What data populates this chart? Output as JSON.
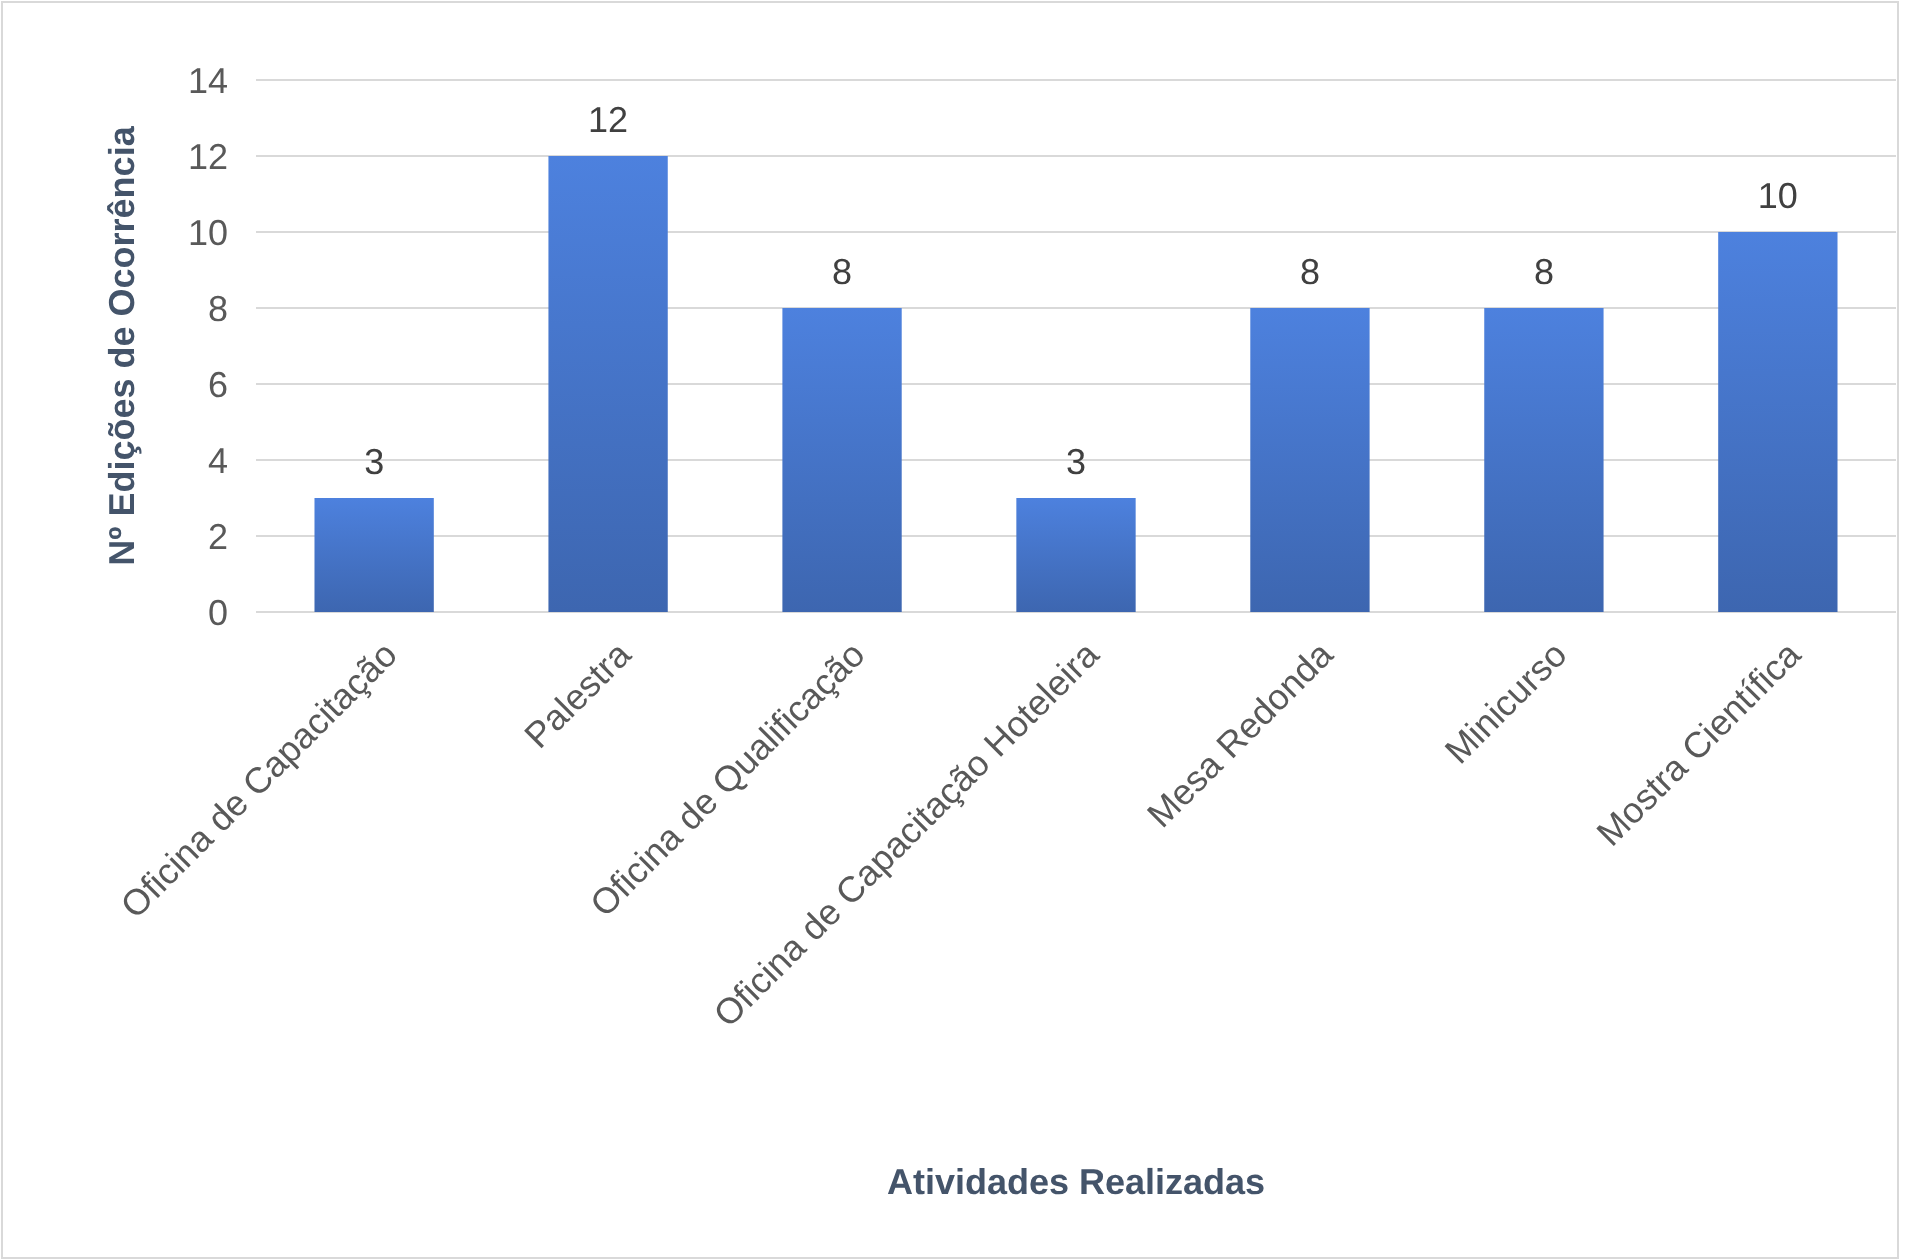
{
  "chart_data": {
    "type": "bar",
    "xlabel": "Atividades Realizadas",
    "ylabel": "Nº Edições de Ocorrência",
    "categories": [
      "Oficina de Capacitação",
      "Palestra",
      "Oficina de Qualificação",
      "Oficina de Capacitação Hoteleira",
      "Mesa Redonda",
      "Minicurso",
      "Mostra Científica"
    ],
    "values": [
      3,
      12,
      8,
      3,
      8,
      8,
      10
    ],
    "color": "#4472c4",
    "ylim": [
      0,
      14
    ],
    "yticks": [
      0,
      2,
      4,
      6,
      8,
      10,
      12,
      14
    ],
    "grid": "y",
    "data_labels": true
  }
}
